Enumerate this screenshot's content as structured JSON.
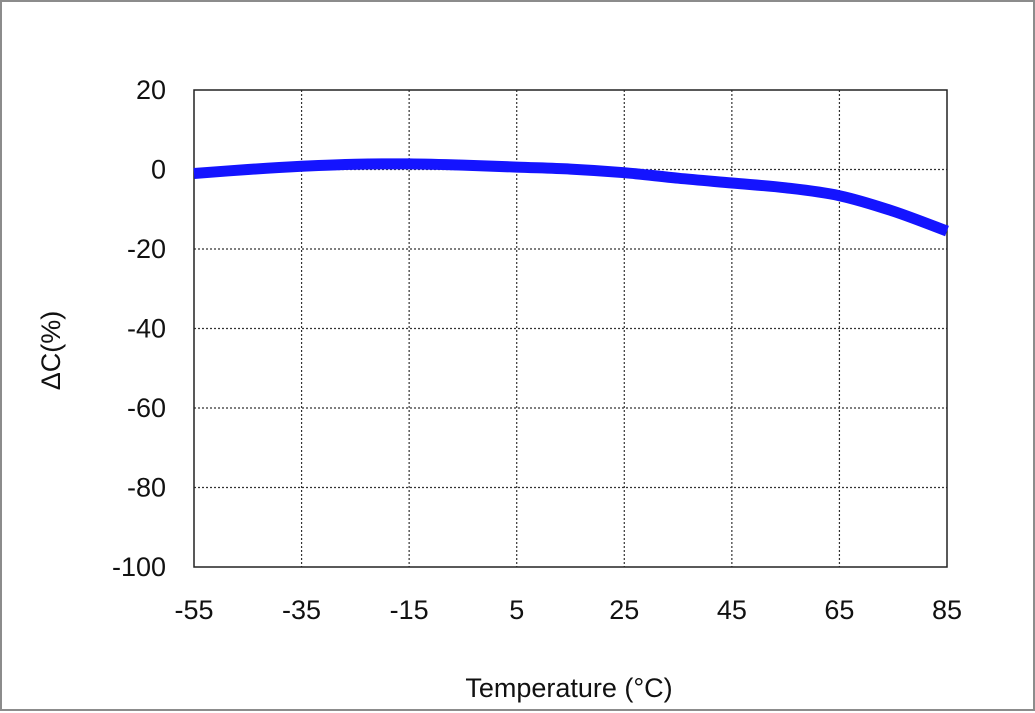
{
  "chart_data": {
    "type": "line",
    "title": "",
    "xlabel": "Temperature (°C)",
    "ylabel": "ΔC(%)",
    "xlim": [
      -55,
      85
    ],
    "ylim": [
      -100,
      20
    ],
    "x_ticks": [
      -55,
      -35,
      -15,
      5,
      25,
      45,
      65,
      85
    ],
    "y_ticks": [
      20,
      0,
      -20,
      -40,
      -60,
      -80,
      -100
    ],
    "grid": true,
    "legend": "none",
    "series": [
      {
        "color": "#1414ff",
        "x": [
          -55,
          -45,
          -35,
          -25,
          -15,
          -5,
          5,
          15,
          25,
          35,
          45,
          55,
          65,
          75,
          85
        ],
        "y": [
          -1,
          0,
          0.8,
          1.3,
          1.4,
          1.1,
          0.6,
          0.1,
          -0.8,
          -2.2,
          -3.4,
          -4.6,
          -6.6,
          -10.5,
          -15.5
        ]
      }
    ]
  }
}
